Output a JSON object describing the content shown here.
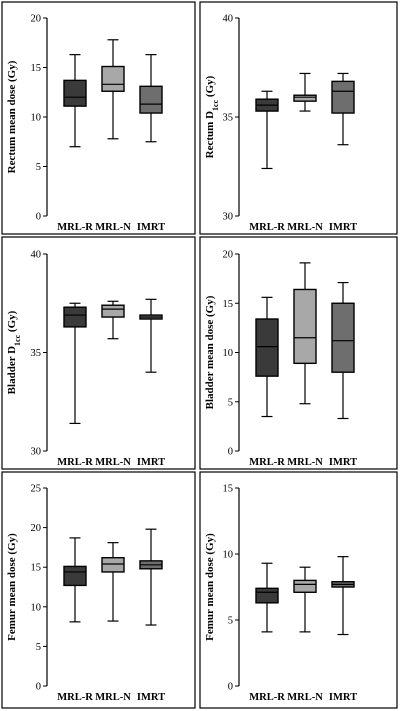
{
  "colors": {
    "MRL-R": "#3a3a3a",
    "MRL-N": "#a8a8a8",
    "IMRT": "#6e6e6e"
  },
  "chart_data": [
    {
      "type": "box",
      "ylabel": "Rectum mean dose (Gy)",
      "ylabel_sub": "",
      "ylim": [
        0,
        20
      ],
      "yticks": [
        "0",
        "5",
        "10",
        "15",
        "20"
      ],
      "categories": [
        "MRL-R",
        "MRL-N",
        "IMRT"
      ],
      "boxes": [
        {
          "min": 7.0,
          "q1": 11.1,
          "median": 12.0,
          "q3": 13.7,
          "max": 16.3
        },
        {
          "min": 7.8,
          "q1": 12.6,
          "median": 13.3,
          "q3": 15.1,
          "max": 17.8
        },
        {
          "min": 7.5,
          "q1": 10.4,
          "median": 11.3,
          "q3": 13.1,
          "max": 16.3
        }
      ]
    },
    {
      "type": "box",
      "ylabel": "Rectum D",
      "ylabel_sub": "1cc",
      "ylabel_unit": " (Gy)",
      "ylim": [
        30,
        40
      ],
      "yticks": [
        "30",
        "35",
        "40"
      ],
      "categories": [
        "MRL-R",
        "MRL-N",
        "IMRT"
      ],
      "boxes": [
        {
          "min": 32.4,
          "q1": 35.3,
          "median": 35.6,
          "q3": 35.9,
          "max": 36.3
        },
        {
          "min": 35.3,
          "q1": 35.8,
          "median": 36.0,
          "q3": 36.1,
          "max": 37.2
        },
        {
          "min": 33.6,
          "q1": 35.2,
          "median": 36.3,
          "q3": 36.8,
          "max": 37.2
        }
      ]
    },
    {
      "type": "box",
      "ylabel": "Bladder D",
      "ylabel_sub": "1cc",
      "ylabel_unit": " (Gy)",
      "ylim": [
        30,
        40
      ],
      "yticks": [
        "30",
        "35",
        "40"
      ],
      "categories": [
        "MRL-R",
        "MRL-N",
        "IMRT"
      ],
      "boxes": [
        {
          "min": 31.4,
          "q1": 36.3,
          "median": 36.9,
          "q3": 37.3,
          "max": 37.5
        },
        {
          "min": 35.7,
          "q1": 36.8,
          "median": 37.2,
          "q3": 37.4,
          "max": 37.6
        },
        {
          "min": 34.0,
          "q1": 36.7,
          "median": 36.8,
          "q3": 36.9,
          "max": 37.7
        }
      ]
    },
    {
      "type": "box",
      "ylabel": "Bladder mean dose (Gy)",
      "ylabel_sub": "",
      "ylim": [
        0,
        20
      ],
      "yticks": [
        "0",
        "5",
        "10",
        "15",
        "20"
      ],
      "categories": [
        "MRL-R",
        "MRL-N",
        "IMRT"
      ],
      "boxes": [
        {
          "min": 3.5,
          "q1": 7.6,
          "median": 10.6,
          "q3": 13.4,
          "max": 15.6
        },
        {
          "min": 4.8,
          "q1": 8.9,
          "median": 11.5,
          "q3": 16.4,
          "max": 19.1
        },
        {
          "min": 3.3,
          "q1": 8.0,
          "median": 11.2,
          "q3": 15.0,
          "max": 17.1
        }
      ]
    },
    {
      "type": "box",
      "ylabel": "Femur mean dose (Gy)",
      "ylabel_sub": "",
      "ylim": [
        0,
        25
      ],
      "yticks": [
        "0",
        "5",
        "10",
        "15",
        "20",
        "25"
      ],
      "categories": [
        "MRL-R",
        "MRL-N",
        "IMRT"
      ],
      "boxes": [
        {
          "min": 8.1,
          "q1": 12.7,
          "median": 14.4,
          "q3": 15.1,
          "max": 18.7
        },
        {
          "min": 8.2,
          "q1": 14.4,
          "median": 15.4,
          "q3": 16.2,
          "max": 18.1
        },
        {
          "min": 7.7,
          "q1": 14.8,
          "median": 15.3,
          "q3": 15.8,
          "max": 19.8
        }
      ]
    },
    {
      "type": "box",
      "ylabel": "Femur mean dose (Gy)",
      "ylabel_sub": "",
      "ylim": [
        0,
        15
      ],
      "yticks": [
        "0",
        "5",
        "10",
        "15"
      ],
      "categories": [
        "MRL-R",
        "MRL-N",
        "IMRT"
      ],
      "boxes": [
        {
          "min": 4.1,
          "q1": 6.3,
          "median": 7.1,
          "q3": 7.4,
          "max": 9.3
        },
        {
          "min": 4.1,
          "q1": 7.1,
          "median": 7.7,
          "q3": 8.0,
          "max": 9.0
        },
        {
          "min": 3.9,
          "q1": 7.5,
          "median": 7.7,
          "q3": 7.9,
          "max": 9.8
        }
      ]
    }
  ]
}
